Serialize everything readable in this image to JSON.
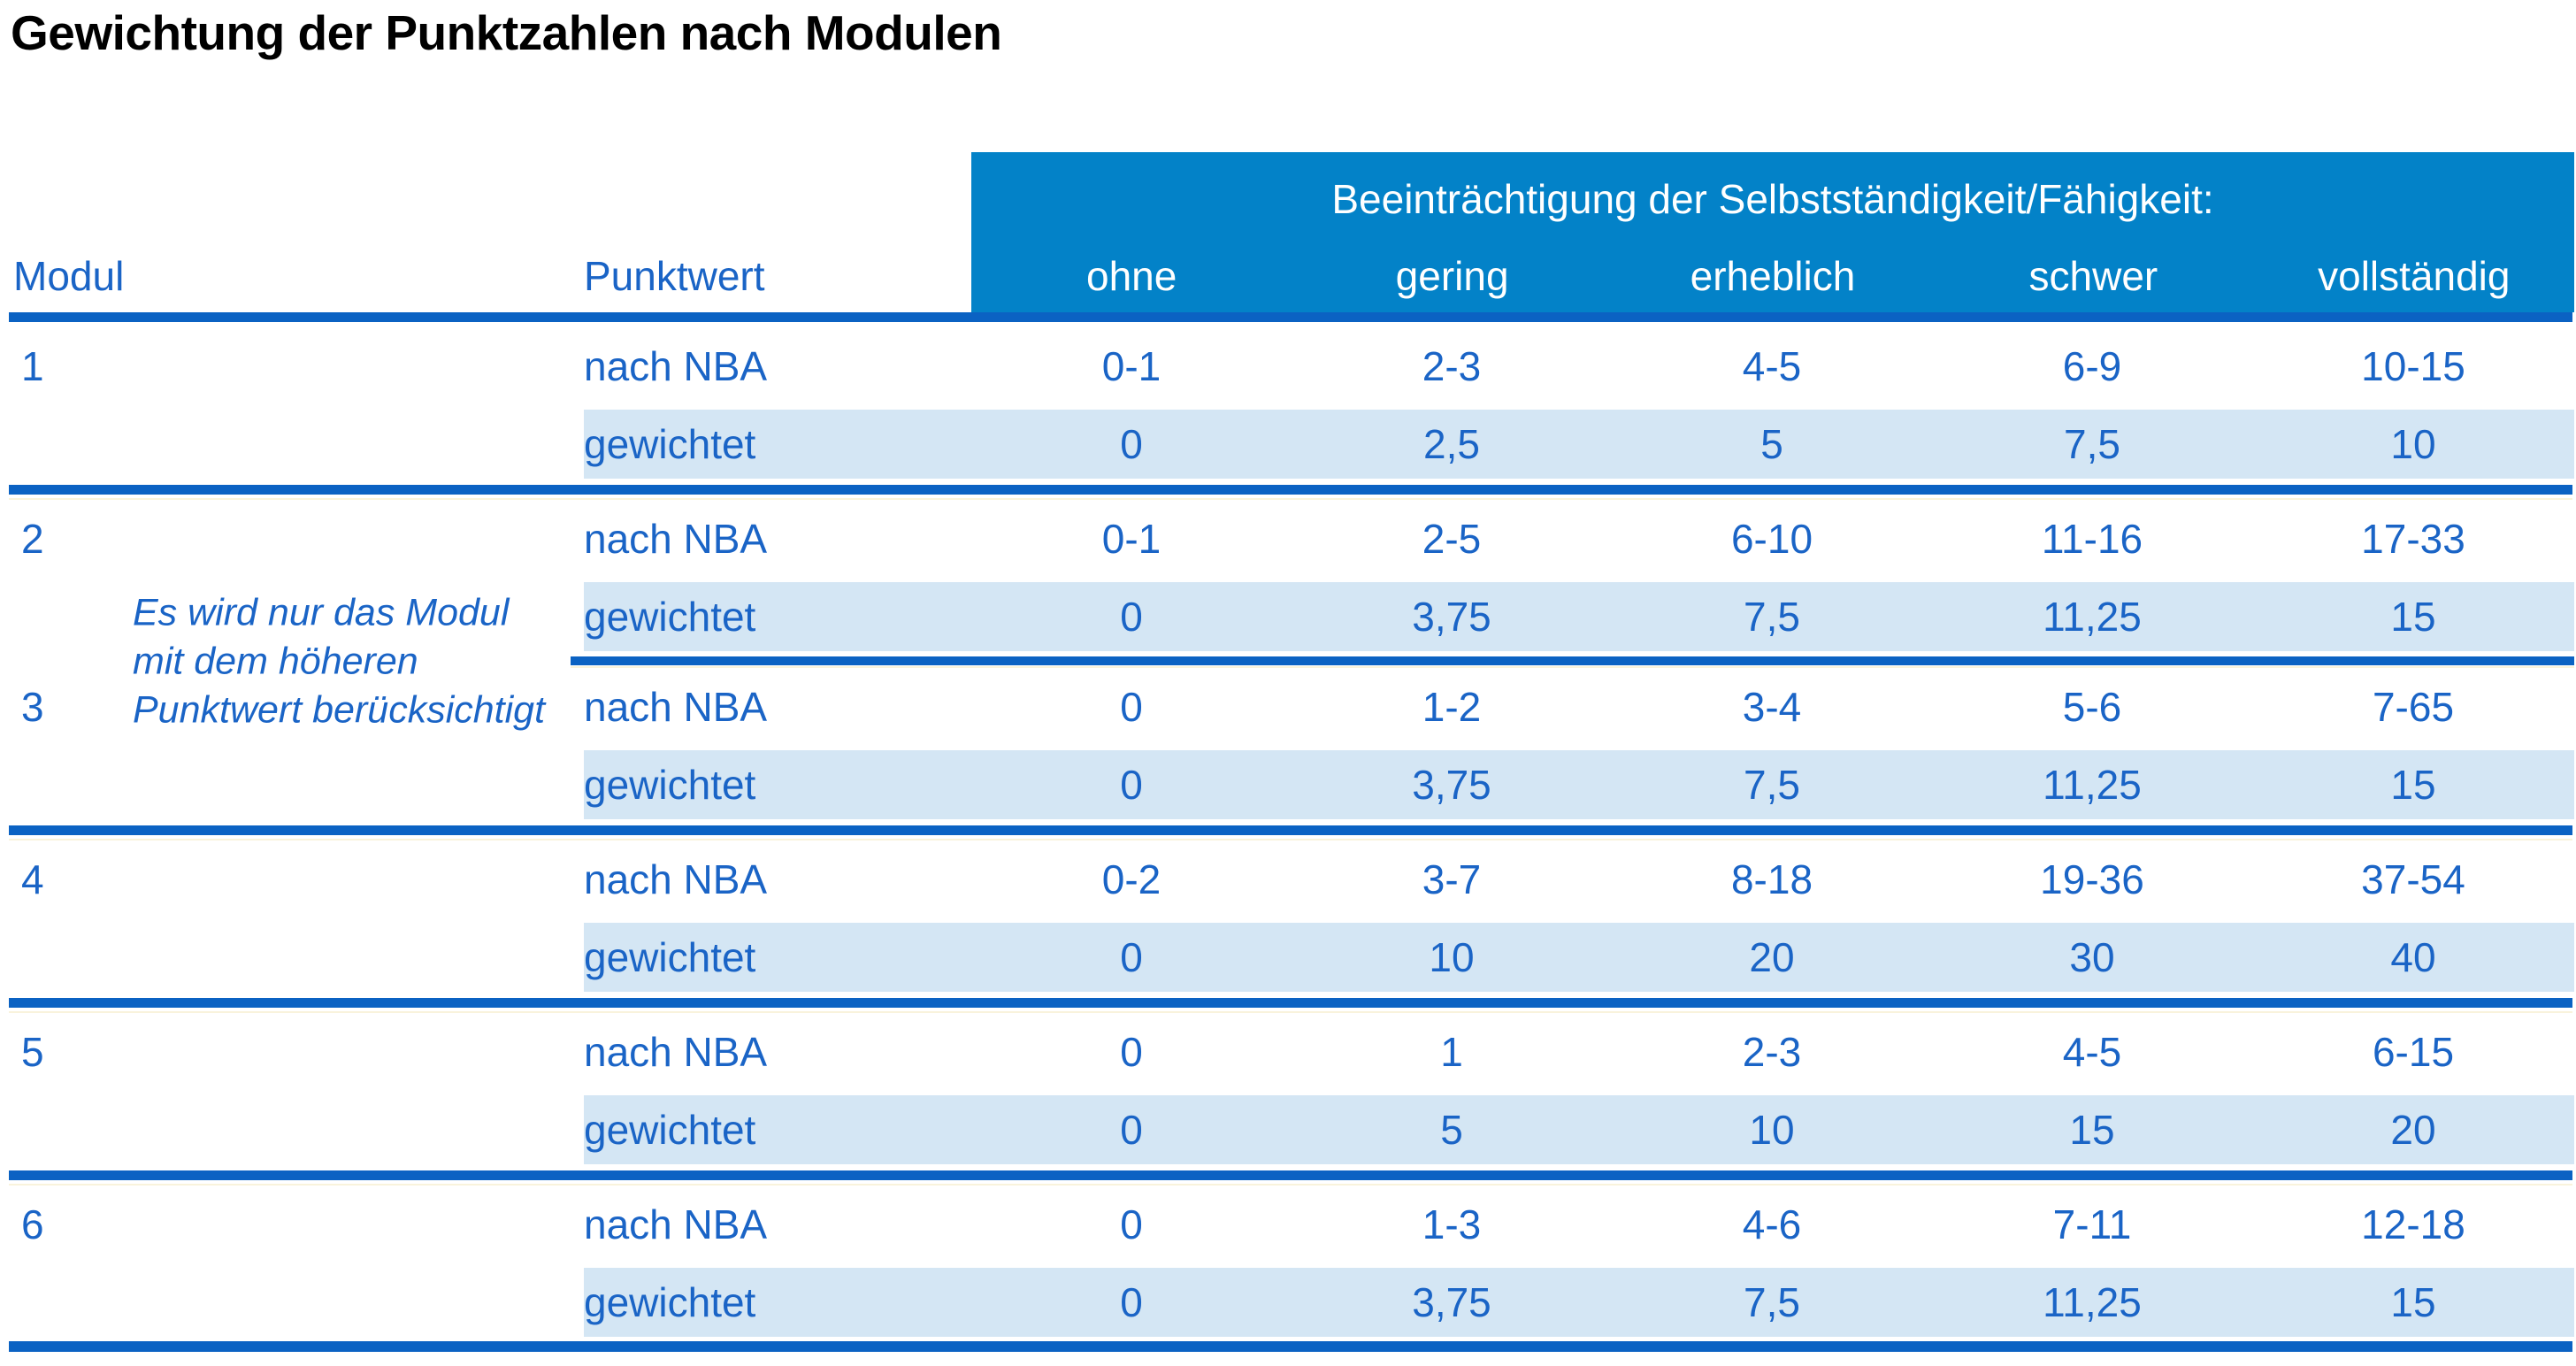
{
  "title": "Gewichtung der Punktzahlen nach Modulen",
  "table": {
    "modul_header": "Modul",
    "punktwert_header": "Punktwert",
    "impairment_header": "Beeinträchtigung der Selbstständigkeit/Fähigkeit:",
    "severity_levels": [
      "ohne",
      "gering",
      "erheblich",
      "schwer",
      "vollständig"
    ],
    "row_label_raw": "nach NBA",
    "row_label_weighted": "gewichtet",
    "note_lines": [
      "Es wird nur das Modul",
      "mit dem höheren",
      "Punktwert berücksichtigt"
    ],
    "modules": [
      {
        "id": "1",
        "nach_nba": [
          "0-1",
          "2-3",
          "4-5",
          "6-9",
          "10-15"
        ],
        "gewichtet": [
          "0",
          "2,5",
          "5",
          "7,5",
          "10"
        ]
      },
      {
        "id": "2",
        "nach_nba": [
          "0-1",
          "2-5",
          "6-10",
          "11-16",
          "17-33"
        ],
        "gewichtet": [
          "0",
          "3,75",
          "7,5",
          "11,25",
          "15"
        ]
      },
      {
        "id": "3",
        "nach_nba": [
          "0",
          "1-2",
          "3-4",
          "5-6",
          "7-65"
        ],
        "gewichtet": [
          "0",
          "3,75",
          "7,5",
          "11,25",
          "15"
        ]
      },
      {
        "id": "4",
        "nach_nba": [
          "0-2",
          "3-7",
          "8-18",
          "19-36",
          "37-54"
        ],
        "gewichtet": [
          "0",
          "10",
          "20",
          "30",
          "40"
        ]
      },
      {
        "id": "5",
        "nach_nba": [
          "0",
          "1",
          "2-3",
          "4-5",
          "6-15"
        ],
        "gewichtet": [
          "0",
          "5",
          "10",
          "15",
          "20"
        ]
      },
      {
        "id": "6",
        "nach_nba": [
          "0",
          "1-3",
          "4-6",
          "7-11",
          "12-18"
        ],
        "gewichtet": [
          "0",
          "3,75",
          "7,5",
          "11,25",
          "15"
        ]
      }
    ]
  },
  "colors": {
    "header_bg": "#0382C8",
    "rule_blue": "#0B62C3",
    "row_highlight": "#D4E6F4",
    "text_blue": "#1A64C6",
    "title_text": "#000000"
  }
}
